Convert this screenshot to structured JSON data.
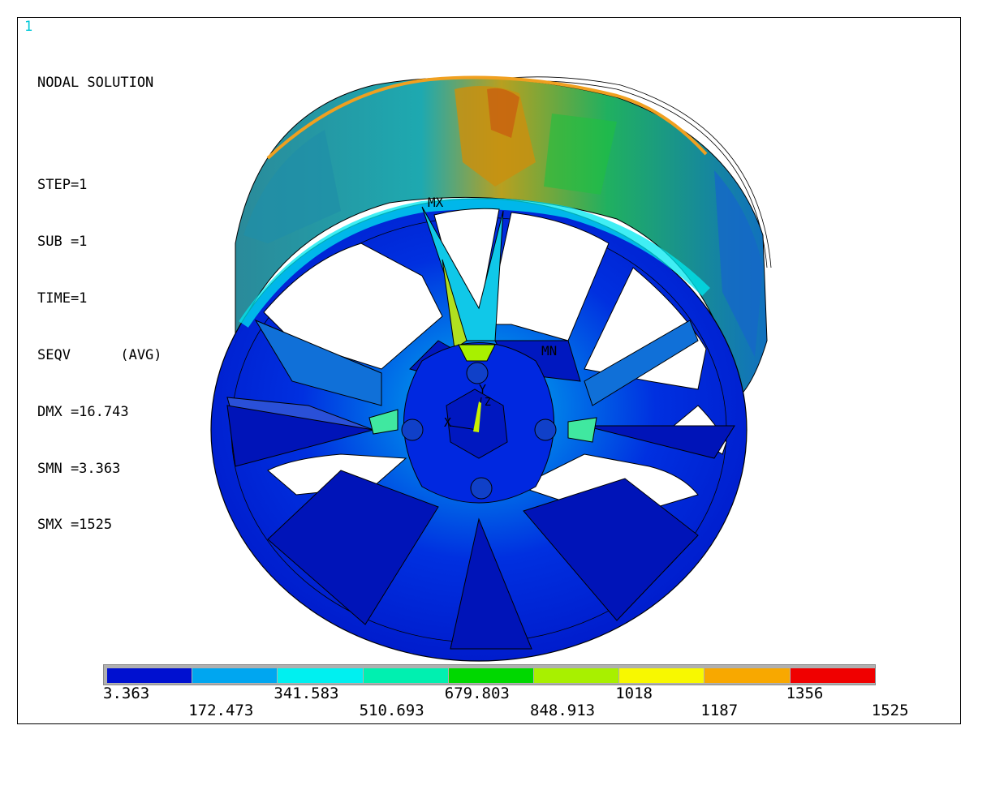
{
  "window_number": "1",
  "header": {
    "title": "NODAL SOLUTION",
    "lines": [
      "STEP=1",
      "SUB =1",
      "TIME=1",
      "SEQV      (AVG)",
      "DMX =16.743",
      "SMN =3.363",
      "SMX =1525"
    ]
  },
  "markers": {
    "max": "MX",
    "min": "MN",
    "axis_y": "Y",
    "axis_z": "Z",
    "axis_x": "X"
  },
  "legend": {
    "colors": [
      "#0010d0",
      "#00a6f0",
      "#00f0f0",
      "#00f0b0",
      "#00d800",
      "#a8f000",
      "#f8f800",
      "#f8a800",
      "#f00000"
    ],
    "labels_top": [
      "3.363",
      "341.583",
      "679.803",
      "1018",
      "1356"
    ],
    "labels_bottom": [
      "172.473",
      "510.693",
      "848.913",
      "1187",
      "1525"
    ]
  }
}
